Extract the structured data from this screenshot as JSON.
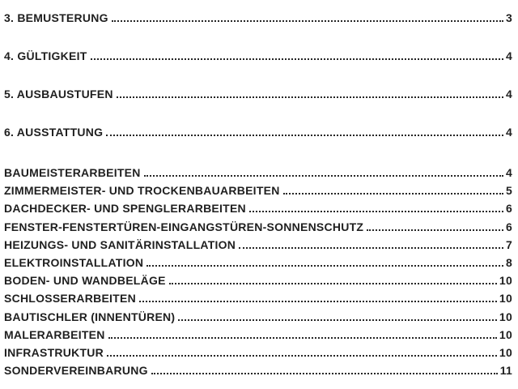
{
  "toc": {
    "colors": {
      "text": "#1f1f1f",
      "dots": "#262626",
      "background": "#ffffff"
    },
    "chapters": [
      {
        "label": "3. BEMUSTERUNG",
        "page": "3"
      },
      {
        "label": "4. GÜLTIGKEIT",
        "page": "4"
      },
      {
        "label": "5. AUSBAUSTUFEN",
        "page": "4"
      },
      {
        "label": "6. AUSSTATTUNG",
        "page": "4"
      }
    ],
    "sections": [
      {
        "label": "BAUMEISTERARBEITEN",
        "page": "4"
      },
      {
        "label": "ZIMMERMEISTER- UND TROCKENBAUARBEITEN",
        "page": "5"
      },
      {
        "label": "DACHDECKER- UND SPENGLERARBEITEN",
        "page": "6"
      },
      {
        "label": "FENSTER-FENSTERTÜREN-EINGANGSTÜREN-SONNENSCHUTZ",
        "page": "6"
      },
      {
        "label": "HEIZUNGS- UND SANITÄRINSTALLATION",
        "page": "7"
      },
      {
        "label": "ELEKTROINSTALLATION",
        "page": "8"
      },
      {
        "label": "BODEN- UND WANDBELÄGE",
        "page": "10"
      },
      {
        "label": "SCHLOSSERARBEITEN",
        "page": "10"
      },
      {
        "label": "BAUTISCHLER (INNENTÜREN)",
        "page": "10"
      },
      {
        "label": "MALERARBEITEN",
        "page": "10"
      },
      {
        "label": "INFRASTRUKTUR",
        "page": "10"
      },
      {
        "label": "SONDERVEREINBARUNG",
        "page": "11"
      }
    ]
  }
}
